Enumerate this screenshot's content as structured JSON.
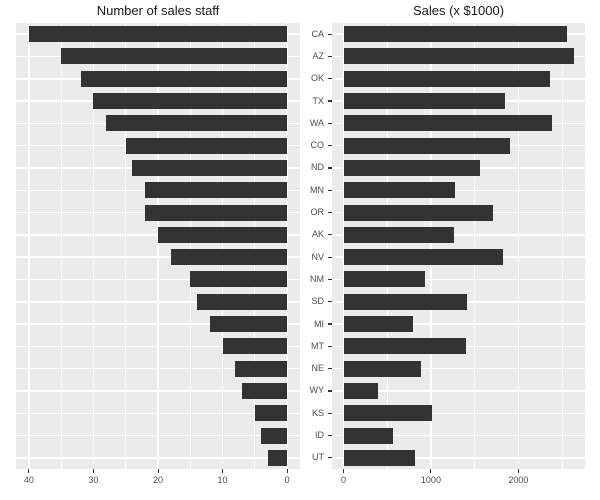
{
  "figure": {
    "background": "#FFFFFF",
    "panel_background": "#EBEBEB",
    "grid_color": "#FFFFFF",
    "bar_color": "#333333",
    "axis_text_color": "#4D4D4D",
    "tick_color": "#333333",
    "title_color": "#1A1A1A"
  },
  "chart_data": [
    {
      "type": "bar",
      "orientation": "horizontal",
      "direction": "left",
      "title": "Number of sales staff",
      "categories": [
        "CA",
        "AZ",
        "OK",
        "TX",
        "WA",
        "CO",
        "ND",
        "MN",
        "OR",
        "AK",
        "NV",
        "NM",
        "SD",
        "MI",
        "MT",
        "NE",
        "WY",
        "KS",
        "ID",
        "UT"
      ],
      "values": [
        40,
        35,
        32,
        30,
        28,
        25,
        24,
        22,
        22,
        20,
        18,
        15,
        14,
        12,
        10,
        8,
        7,
        5,
        4,
        3
      ],
      "xlim": [
        0,
        40
      ],
      "x_major_ticks": [
        40,
        30,
        20,
        10,
        0
      ],
      "x_tick_labels": [
        "40",
        "30",
        "20",
        "10",
        "0"
      ],
      "x_minor_ticks": [
        35,
        25,
        15,
        5
      ],
      "grid": true,
      "legend": "none",
      "y_labels_shown": false
    },
    {
      "type": "bar",
      "orientation": "horizontal",
      "direction": "right",
      "title": "Sales (x $1000)",
      "categories": [
        "CA",
        "AZ",
        "OK",
        "TX",
        "WA",
        "CO",
        "ND",
        "MN",
        "OR",
        "AK",
        "NV",
        "NM",
        "SD",
        "MI",
        "MT",
        "NE",
        "WY",
        "KS",
        "ID",
        "UT"
      ],
      "values": [
        2550,
        2630,
        2360,
        1850,
        2380,
        1900,
        1560,
        1270,
        1710,
        1260,
        1820,
        930,
        1410,
        800,
        1400,
        890,
        400,
        1010,
        570,
        820
      ],
      "xlim": [
        0,
        2630
      ],
      "x_major_ticks": [
        0,
        1000,
        2000
      ],
      "x_tick_labels": [
        "0",
        "1000",
        "2000"
      ],
      "x_minor_ticks": [
        500,
        1500,
        2500
      ],
      "grid": true,
      "legend": "none",
      "y_labels_shown": true
    }
  ]
}
